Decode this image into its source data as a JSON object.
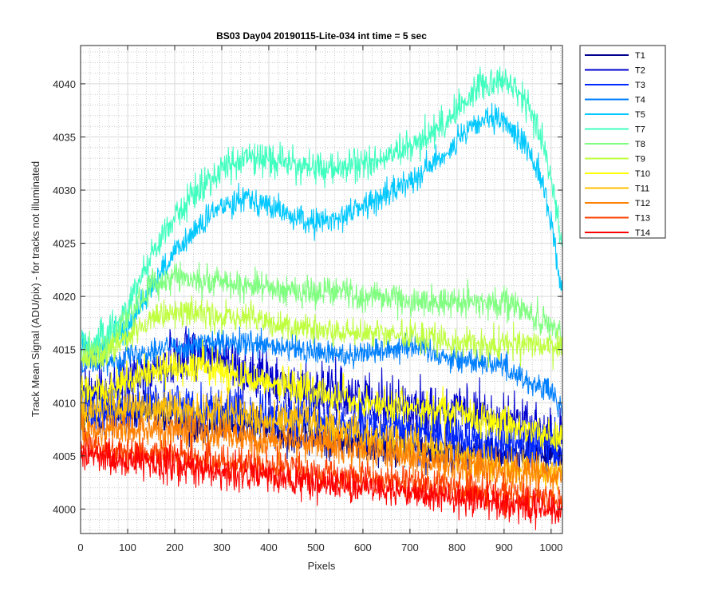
{
  "chart_data": {
    "type": "line",
    "title": "BS03 Day04 20190115-Lite-034 int time = 5 sec",
    "xlabel": "Pixels",
    "ylabel": "Track Mean Signal (ADU/pix) - for tracks not illuminated",
    "xlim": [
      0,
      1024
    ],
    "ylim": [
      3997.7,
      4043.6
    ],
    "x_ticks": [
      0,
      100,
      200,
      300,
      400,
      500,
      600,
      700,
      800,
      900,
      1000
    ],
    "y_ticks": [
      4000,
      4005,
      4010,
      4015,
      4020,
      4025,
      4030,
      4035,
      4040
    ],
    "grid": true,
    "minor_grid": true,
    "legend_position": "outside-top-right",
    "x_step": 1,
    "series": [
      {
        "name": "T1",
        "color": "#00008f",
        "noise": 1.3,
        "points": [
          [
            0,
            4008
          ],
          [
            60,
            4009
          ],
          [
            150,
            4009
          ],
          [
            250,
            4008
          ],
          [
            350,
            4008
          ],
          [
            450,
            4007
          ],
          [
            550,
            4006.5
          ],
          [
            650,
            4006
          ],
          [
            750,
            4005.5
          ],
          [
            850,
            4005.5
          ],
          [
            950,
            4005
          ],
          [
            1024,
            4005
          ]
        ]
      },
      {
        "name": "T2",
        "color": "#0000cf",
        "noise": 1.8,
        "points": [
          [
            0,
            4011
          ],
          [
            60,
            4011
          ],
          [
            150,
            4013
          ],
          [
            230,
            4015
          ],
          [
            300,
            4014
          ],
          [
            400,
            4012
          ],
          [
            500,
            4011
          ],
          [
            600,
            4010.5
          ],
          [
            700,
            4009.5
          ],
          [
            800,
            4009
          ],
          [
            900,
            4008.5
          ],
          [
            1000,
            4007
          ],
          [
            1024,
            4006.5
          ]
        ]
      },
      {
        "name": "T3",
        "color": "#0028ff",
        "noise": 1.5,
        "points": [
          [
            0,
            4009
          ],
          [
            60,
            4009
          ],
          [
            150,
            4010
          ],
          [
            250,
            4009.5
          ],
          [
            350,
            4009
          ],
          [
            450,
            4008.5
          ],
          [
            550,
            4008
          ],
          [
            650,
            4007.5
          ],
          [
            750,
            4007
          ],
          [
            850,
            4006.5
          ],
          [
            950,
            4006
          ],
          [
            1024,
            4005.5
          ]
        ]
      },
      {
        "name": "T4",
        "color": "#0080ff",
        "noise": 0.9,
        "points": [
          [
            0,
            4014
          ],
          [
            60,
            4014
          ],
          [
            150,
            4015
          ],
          [
            250,
            4015.5
          ],
          [
            350,
            4015.5
          ],
          [
            450,
            4015
          ],
          [
            550,
            4014.5
          ],
          [
            650,
            4015
          ],
          [
            700,
            4015.5
          ],
          [
            800,
            4014
          ],
          [
            850,
            4014
          ],
          [
            900,
            4013.5
          ],
          [
            950,
            4012
          ],
          [
            1000,
            4011
          ],
          [
            1024,
            4009
          ]
        ]
      },
      {
        "name": "T5",
        "color": "#00c8ff",
        "noise": 0.9,
        "points": [
          [
            0,
            4015.5
          ],
          [
            30,
            4015
          ],
          [
            60,
            4015.5
          ],
          [
            100,
            4017
          ],
          [
            150,
            4021
          ],
          [
            200,
            4024
          ],
          [
            250,
            4026.5
          ],
          [
            300,
            4028.5
          ],
          [
            350,
            4029.5
          ],
          [
            400,
            4028.5
          ],
          [
            450,
            4027.5
          ],
          [
            480,
            4027
          ],
          [
            520,
            4027
          ],
          [
            550,
            4027.5
          ],
          [
            600,
            4028.5
          ],
          [
            650,
            4029.5
          ],
          [
            700,
            4031
          ],
          [
            750,
            4032.5
          ],
          [
            800,
            4034.5
          ],
          [
            850,
            4036.5
          ],
          [
            900,
            4036.5
          ],
          [
            950,
            4034
          ],
          [
            980,
            4031
          ],
          [
            1000,
            4027
          ],
          [
            1015,
            4022.5
          ],
          [
            1024,
            4020.5
          ]
        ]
      },
      {
        "name": "T7",
        "color": "#40ffbf",
        "noise": 1.1,
        "points": [
          [
            0,
            4016
          ],
          [
            30,
            4015.5
          ],
          [
            60,
            4016.5
          ],
          [
            100,
            4019
          ],
          [
            150,
            4024
          ],
          [
            200,
            4027.5
          ],
          [
            250,
            4030
          ],
          [
            300,
            4032
          ],
          [
            350,
            4033
          ],
          [
            400,
            4033
          ],
          [
            450,
            4032.5
          ],
          [
            500,
            4032
          ],
          [
            550,
            4032
          ],
          [
            600,
            4032.5
          ],
          [
            650,
            4033
          ],
          [
            700,
            4034
          ],
          [
            750,
            4035.5
          ],
          [
            800,
            4037.5
          ],
          [
            850,
            4040
          ],
          [
            900,
            4040.5
          ],
          [
            950,
            4038
          ],
          [
            980,
            4035
          ],
          [
            1000,
            4031
          ],
          [
            1024,
            4025
          ]
        ]
      },
      {
        "name": "T8",
        "color": "#80ff80",
        "noise": 1.0,
        "points": [
          [
            0,
            4014.5
          ],
          [
            50,
            4015
          ],
          [
            100,
            4018
          ],
          [
            150,
            4021
          ],
          [
            200,
            4022
          ],
          [
            250,
            4021.5
          ],
          [
            300,
            4021.5
          ],
          [
            350,
            4021
          ],
          [
            400,
            4021
          ],
          [
            450,
            4020.5
          ],
          [
            500,
            4020.5
          ],
          [
            550,
            4020.5
          ],
          [
            600,
            4020
          ],
          [
            650,
            4020
          ],
          [
            700,
            4019.5
          ],
          [
            800,
            4019.5
          ],
          [
            900,
            4019.5
          ],
          [
            950,
            4018.5
          ],
          [
            1000,
            4017
          ],
          [
            1024,
            4016
          ]
        ]
      },
      {
        "name": "T9",
        "color": "#bfff40",
        "noise": 1.0,
        "points": [
          [
            0,
            4014
          ],
          [
            50,
            4014.5
          ],
          [
            100,
            4016.5
          ],
          [
            150,
            4017.5
          ],
          [
            200,
            4018.5
          ],
          [
            250,
            4018.5
          ],
          [
            300,
            4018
          ],
          [
            350,
            4018
          ],
          [
            400,
            4017.5
          ],
          [
            450,
            4017
          ],
          [
            500,
            4017
          ],
          [
            550,
            4016.5
          ],
          [
            650,
            4016.5
          ],
          [
            750,
            4016
          ],
          [
            850,
            4015.5
          ],
          [
            950,
            4015.5
          ],
          [
            1024,
            4015
          ]
        ]
      },
      {
        "name": "T10",
        "color": "#ffff00",
        "noise": 1.2,
        "points": [
          [
            0,
            4011
          ],
          [
            50,
            4011
          ],
          [
            100,
            4012
          ],
          [
            150,
            4013
          ],
          [
            200,
            4013.5
          ],
          [
            250,
            4013.5
          ],
          [
            300,
            4013
          ],
          [
            350,
            4012.5
          ],
          [
            400,
            4012
          ],
          [
            450,
            4011.5
          ],
          [
            500,
            4011
          ],
          [
            550,
            4010.5
          ],
          [
            600,
            4010
          ],
          [
            700,
            4009.5
          ],
          [
            800,
            4009
          ],
          [
            900,
            4008
          ],
          [
            1000,
            4007
          ],
          [
            1024,
            4006.5
          ]
        ]
      },
      {
        "name": "T11",
        "color": "#ffbf00",
        "noise": 1.2,
        "points": [
          [
            0,
            4009
          ],
          [
            100,
            4009.5
          ],
          [
            200,
            4009.5
          ],
          [
            300,
            4009
          ],
          [
            400,
            4008.5
          ],
          [
            500,
            4008
          ],
          [
            600,
            4007
          ],
          [
            700,
            4006
          ],
          [
            800,
            4005
          ],
          [
            900,
            4004
          ],
          [
            1000,
            4003.5
          ],
          [
            1024,
            4003.5
          ]
        ]
      },
      {
        "name": "T12",
        "color": "#ff8000",
        "noise": 1.2,
        "points": [
          [
            0,
            4007.5
          ],
          [
            100,
            4007.5
          ],
          [
            200,
            4007.5
          ],
          [
            300,
            4007
          ],
          [
            400,
            4006.5
          ],
          [
            500,
            4006
          ],
          [
            600,
            4005.5
          ],
          [
            700,
            4005
          ],
          [
            800,
            4004
          ],
          [
            900,
            4003.5
          ],
          [
            1000,
            4003
          ],
          [
            1024,
            4003
          ]
        ]
      },
      {
        "name": "T13",
        "color": "#ff4000",
        "noise": 1.1,
        "points": [
          [
            0,
            4006
          ],
          [
            100,
            4005.5
          ],
          [
            200,
            4005
          ],
          [
            300,
            4004.5
          ],
          [
            400,
            4004
          ],
          [
            500,
            4003.5
          ],
          [
            600,
            4003
          ],
          [
            700,
            4002.5
          ],
          [
            800,
            4002
          ],
          [
            900,
            4001.5
          ],
          [
            1000,
            4001
          ],
          [
            1024,
            4001
          ]
        ]
      },
      {
        "name": "T14",
        "color": "#ff0000",
        "noise": 1.1,
        "points": [
          [
            0,
            4005
          ],
          [
            100,
            4004.5
          ],
          [
            200,
            4004
          ],
          [
            300,
            4003.5
          ],
          [
            400,
            4003
          ],
          [
            500,
            4002.5
          ],
          [
            600,
            4002
          ],
          [
            700,
            4001.5
          ],
          [
            800,
            4001
          ],
          [
            900,
            4000.5
          ],
          [
            1000,
            4000
          ],
          [
            1024,
            4000
          ]
        ]
      }
    ]
  }
}
